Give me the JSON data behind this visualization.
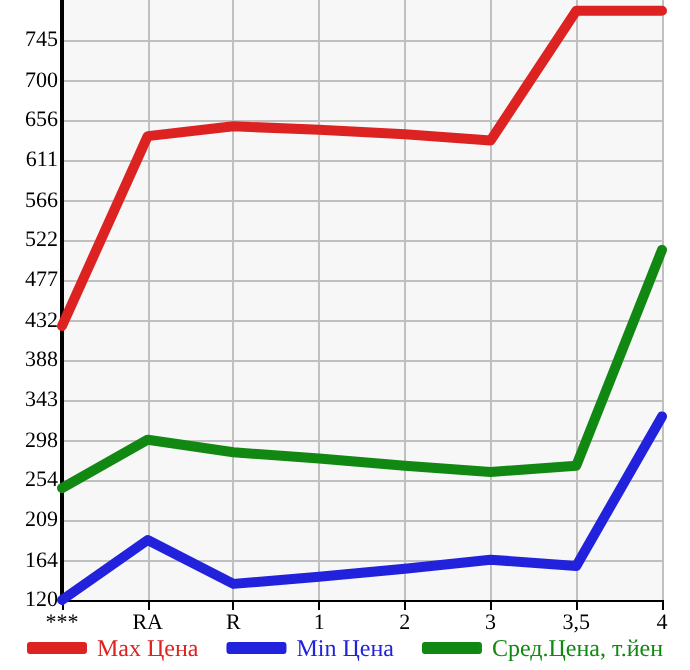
{
  "chart_data": {
    "type": "line",
    "categories": [
      "***",
      "RA",
      "R",
      "1",
      "2",
      "3",
      "3,5",
      "4"
    ],
    "series": [
      {
        "name": "Max Цена",
        "color": "#dd2222",
        "values": [
          426,
          638,
          649,
          645,
          640,
          633,
          778,
          778
        ]
      },
      {
        "name": "Min Цена",
        "color": "#2222dd",
        "values": [
          120,
          187,
          138,
          146,
          155,
          165,
          158,
          325
        ]
      },
      {
        "name": "Сред.Цена, т.йен",
        "color": "#118811",
        "values": [
          245,
          299,
          285,
          278,
          270,
          263,
          270,
          511
        ]
      }
    ],
    "ylim": [
      120,
      790
    ],
    "yticks": [
      120,
      164,
      209,
      254,
      298,
      343,
      388,
      432,
      477,
      522,
      566,
      611,
      656,
      700,
      745
    ],
    "grid": true,
    "legend": "bottom",
    "marker": "none",
    "line_style": "solid"
  }
}
